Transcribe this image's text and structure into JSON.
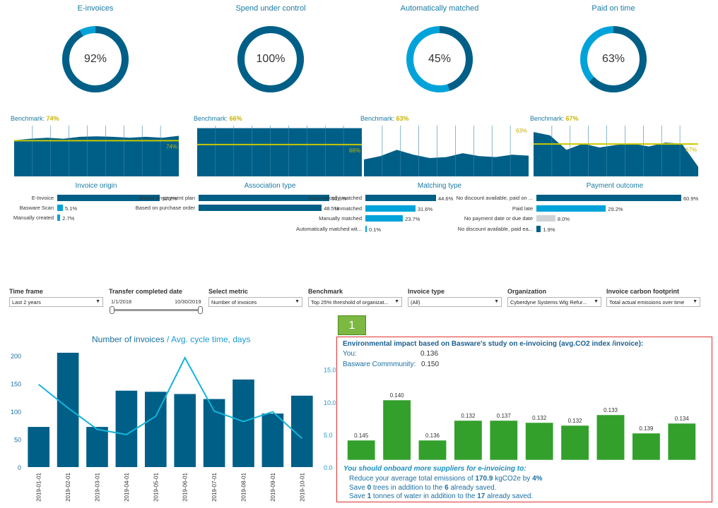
{
  "kpis": [
    {
      "title": "E-invoices",
      "value": "92%",
      "fraction": 0.92
    },
    {
      "title": "Spend under control",
      "value": "100%",
      "fraction": 1.0
    },
    {
      "title": "Automatically matched",
      "value": "45%",
      "fraction": 0.45
    },
    {
      "title": "Paid on time",
      "value": "63%",
      "fraction": 0.63
    }
  ],
  "benchmarks": [
    {
      "label": "Benchmark:",
      "pct": "74%",
      "line_label": "74%"
    },
    {
      "label": "Benchmark:",
      "pct": "66%",
      "line_label": "66%"
    },
    {
      "label": "Benchmark:",
      "pct": "63%",
      "line_label": "63%"
    },
    {
      "label": "Benchmark:",
      "pct": "67%",
      "line_label": "67%"
    }
  ],
  "sections": [
    {
      "title": "Invoice origin",
      "rows": [
        {
          "label": "E-Invoice",
          "value": "92.2%",
          "fraction": 0.922,
          "color": "#005f87"
        },
        {
          "label": "Basware Scan",
          "value": "5.1%",
          "fraction": 0.051,
          "color": "#00a3d9"
        },
        {
          "label": "Manually created",
          "value": "2.7%",
          "fraction": 0.027,
          "color": "#00a3d9"
        }
      ]
    },
    {
      "title": "Association type",
      "rows": [
        {
          "label": "Based on payment plan",
          "value": "51.5%",
          "fraction": 0.515,
          "color": "#005f87"
        },
        {
          "label": "Based on purchase order",
          "value": "48.5%",
          "fraction": 0.485,
          "color": "#005f87"
        }
      ]
    },
    {
      "title": "Matching type",
      "rows": [
        {
          "label": "Automatically matched",
          "value": "44.6%",
          "fraction": 0.446,
          "color": "#005f87"
        },
        {
          "label": "Unmatched",
          "value": "31.6%",
          "fraction": 0.316,
          "color": "#00a3d9"
        },
        {
          "label": "Manually matched",
          "value": "23.7%",
          "fraction": 0.237,
          "color": "#00a3d9"
        },
        {
          "label": "Automatically matched wit...",
          "value": "0.1%",
          "fraction": 0.001,
          "color": "#00a3d9"
        }
      ]
    },
    {
      "title": "Payment outcome",
      "rows": [
        {
          "label": "No discount available, paid on ...",
          "value": "60.9%",
          "fraction": 0.609,
          "color": "#005f87"
        },
        {
          "label": "Paid late",
          "value": "29.2%",
          "fraction": 0.292,
          "color": "#00a3d9"
        },
        {
          "label": "No payment date or due date",
          "value": "8.0%",
          "fraction": 0.08,
          "color": "#cfd3d6"
        },
        {
          "label": "No discount available, paid ea...",
          "value": "1.9%",
          "fraction": 0.019,
          "color": "#005f87"
        }
      ]
    }
  ],
  "filters": {
    "time_frame": {
      "label": "Time frame",
      "value": "Last 2 years"
    },
    "transfer_date": {
      "label": "Transfer completed date",
      "start": "1/1/2018",
      "end": "10/30/2019"
    },
    "metric": {
      "label": "Select metric",
      "value": "Number of invoices"
    },
    "benchmark": {
      "label": "Benchmark",
      "value": "Top 25% threshold of organizat..."
    },
    "invoice_type": {
      "label": "Invoice type",
      "value": "(All)"
    },
    "organization": {
      "label": "Organization",
      "value": "Cyberdyne Systems Wlg Refur..."
    },
    "carbon": {
      "label": "Invoice carbon footprint",
      "value": "Total actual emissions over time"
    }
  },
  "colors": {
    "primary": "#005f87",
    "light": "#00a3d9",
    "green": "#33a02c",
    "benchmark": "#c8c800",
    "accent_red": "#e03030"
  },
  "chart_data": [
    {
      "type": "bar",
      "title": "Number of invoices",
      "title_secondary": "Avg. cycle time, days",
      "categories": [
        "2019-01-01",
        "2019-02-01",
        "2019-03-01",
        "2019-04-01",
        "2019-05-01",
        "2019-06-01",
        "2019-07-01",
        "2019-08-01",
        "2019-09-01",
        "2019-10-01"
      ],
      "series": [
        {
          "name": "Number of invoices",
          "values": [
            72,
            205,
            72,
            137,
            135,
            131,
            122,
            157,
            96,
            128
          ]
        },
        {
          "name": "Avg. cycle time, days",
          "type": "line",
          "values": [
            12.7,
            9.1,
            5.8,
            5.0,
            7.8,
            16.8,
            8.6,
            7.0,
            8.5,
            4.4
          ]
        }
      ],
      "ylim": [
        0,
        210
      ],
      "y2lim": [
        0,
        18
      ],
      "yticks": [
        "0",
        "50",
        "100",
        "150",
        "200"
      ],
      "y2ticks": [
        "0.0",
        "5.0",
        "10.0",
        "15.0"
      ]
    },
    {
      "type": "bar",
      "title": "Environmental impact based on Basware's study on e-invoicing (avg.CO2 index /invoice):",
      "values": [
        0.145,
        0.14,
        0.136,
        0.132,
        0.137,
        0.132,
        0.132,
        0.133,
        0.139,
        0.134
      ],
      "labels": [
        "0.145",
        "0.140",
        "0.136",
        "0.132",
        "0.137",
        "0.132",
        "0.132",
        "0.133",
        "0.139",
        "0.134"
      ],
      "relative_heights": [
        0.28,
        0.85,
        0.28,
        0.56,
        0.56,
        0.53,
        0.49,
        0.64,
        0.38,
        0.52
      ]
    }
  ],
  "environment": {
    "badge": "1",
    "you_label": "You:",
    "you_value": "0.136",
    "community_label": "Basware Commmunity:",
    "community_value": "0.150",
    "headline": "You should onboard more suppliers for e-invoicing to:",
    "line1_pre": "Reduce your average total emissions of",
    "line1_val": "170.9",
    "line1_mid": "kgCO2e by",
    "line1_pct": "4%",
    "line2_pre": "Save",
    "line2_a": "0",
    "line2_mid": "trees in addition to the",
    "line2_b": "6",
    "line2_post": "already saved.",
    "line3_pre": "Save",
    "line3_a": "1",
    "line3_mid": "tonnes of water in addition to the",
    "line3_b": "17",
    "line3_post": "already saved."
  }
}
